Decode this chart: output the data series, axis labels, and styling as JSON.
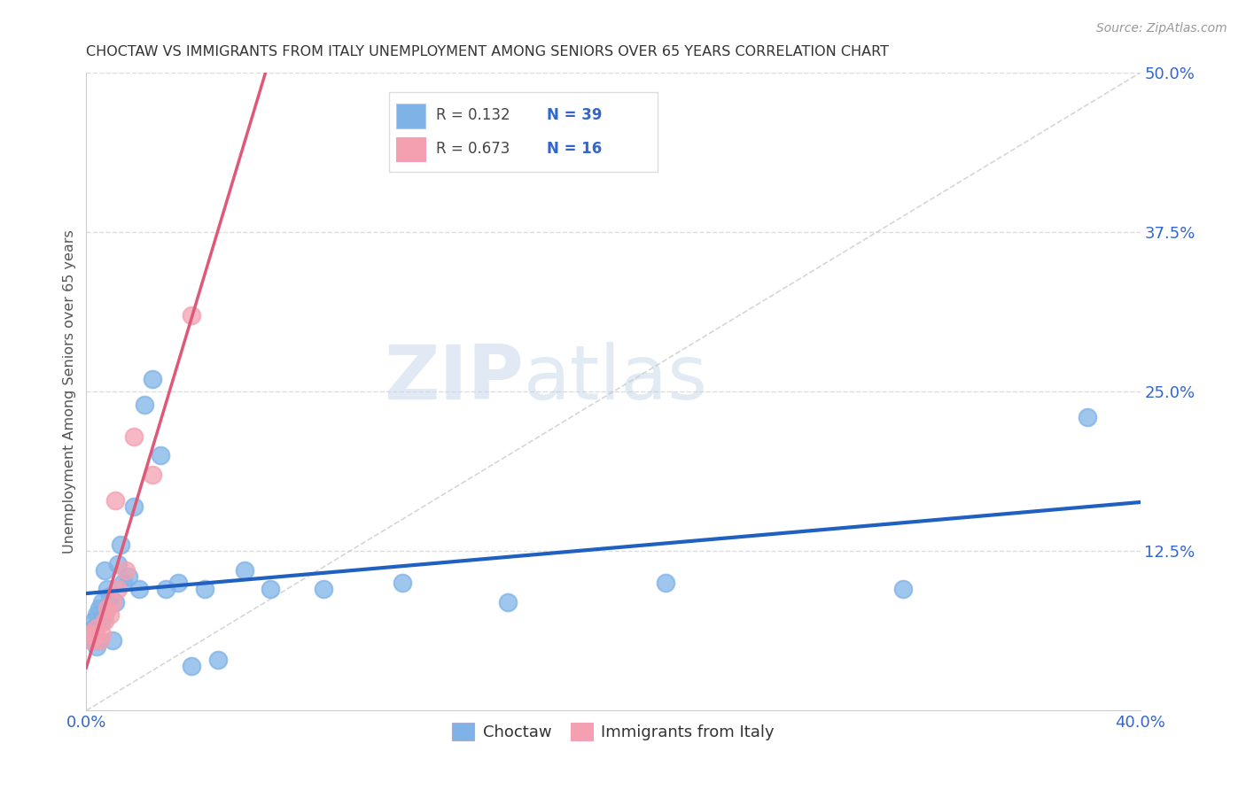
{
  "title": "CHOCTAW VS IMMIGRANTS FROM ITALY UNEMPLOYMENT AMONG SENIORS OVER 65 YEARS CORRELATION CHART",
  "source": "Source: ZipAtlas.com",
  "ylabel": "Unemployment Among Seniors over 65 years",
  "xlim": [
    0.0,
    0.4
  ],
  "ylim": [
    0.0,
    0.5
  ],
  "xticks": [
    0.0,
    0.1,
    0.2,
    0.3,
    0.4
  ],
  "xticklabels": [
    "0.0%",
    "",
    "",
    "",
    "40.0%"
  ],
  "yticks_right": [
    0.0,
    0.125,
    0.25,
    0.375,
    0.5
  ],
  "yticklabels_right": [
    "",
    "12.5%",
    "25.0%",
    "37.5%",
    "50.0%"
  ],
  "choctaw_color": "#7fb3e8",
  "italy_color": "#f4a0b0",
  "choctaw_line_color": "#2060c0",
  "italy_line_color": "#e05878",
  "ref_line_color": "#cccccc",
  "R_choctaw": 0.132,
  "N_choctaw": 39,
  "R_italy": 0.673,
  "N_italy": 16,
  "choctaw_x": [
    0.001,
    0.002,
    0.002,
    0.003,
    0.003,
    0.004,
    0.004,
    0.005,
    0.005,
    0.006,
    0.006,
    0.007,
    0.007,
    0.008,
    0.009,
    0.01,
    0.011,
    0.012,
    0.013,
    0.014,
    0.016,
    0.018,
    0.02,
    0.022,
    0.025,
    0.028,
    0.03,
    0.035,
    0.04,
    0.045,
    0.05,
    0.06,
    0.07,
    0.09,
    0.12,
    0.16,
    0.22,
    0.31,
    0.38
  ],
  "choctaw_y": [
    0.06,
    0.055,
    0.06,
    0.065,
    0.07,
    0.05,
    0.075,
    0.055,
    0.08,
    0.085,
    0.07,
    0.075,
    0.11,
    0.095,
    0.09,
    0.055,
    0.085,
    0.115,
    0.13,
    0.1,
    0.105,
    0.16,
    0.095,
    0.24,
    0.26,
    0.2,
    0.095,
    0.1,
    0.035,
    0.095,
    0.04,
    0.11,
    0.095,
    0.095,
    0.1,
    0.085,
    0.1,
    0.095,
    0.23
  ],
  "italy_x": [
    0.001,
    0.002,
    0.003,
    0.004,
    0.005,
    0.006,
    0.007,
    0.008,
    0.009,
    0.01,
    0.011,
    0.012,
    0.015,
    0.018,
    0.025,
    0.04
  ],
  "italy_y": [
    0.06,
    0.055,
    0.06,
    0.065,
    0.055,
    0.06,
    0.07,
    0.08,
    0.075,
    0.085,
    0.165,
    0.095,
    0.11,
    0.215,
    0.185,
    0.31
  ],
  "watermark_zip": "ZIP",
  "watermark_atlas": "atlas",
  "legend_label_choctaw": "Choctaw",
  "legend_label_italy": "Immigrants from Italy",
  "background_color": "#ffffff",
  "grid_color": "#dddddd",
  "text_color": "#3366cc",
  "label_color": "#555555"
}
